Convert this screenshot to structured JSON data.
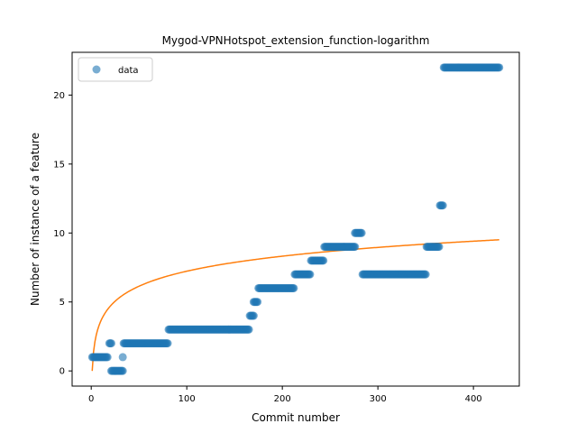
{
  "chart_data": {
    "type": "scatter",
    "title": "Mygod-VPNHotspot_extension_function-logarithm",
    "xlabel": "Commit number",
    "ylabel": "Number of instance of a feature",
    "xlim": [
      -20,
      448
    ],
    "ylim": [
      -1.1,
      23.1
    ],
    "xticks": [
      0,
      100,
      200,
      300,
      400
    ],
    "yticks": [
      0,
      5,
      10,
      15,
      20
    ],
    "grid": false,
    "legend_position": "top-left",
    "series": [
      {
        "name": "data",
        "kind": "scatter",
        "color": "#1f77b4",
        "alpha": 0.6,
        "segments": [
          {
            "x_start": 1,
            "x_end": 17,
            "y": 1
          },
          {
            "x_start": 19,
            "x_end": 21,
            "y": 2
          },
          {
            "x_start": 21,
            "x_end": 33,
            "y": 0
          },
          {
            "x_start": 33,
            "x_end": 33,
            "y": 1
          },
          {
            "x_start": 34,
            "x_end": 80,
            "y": 2
          },
          {
            "x_start": 81,
            "x_end": 165,
            "y": 3
          },
          {
            "x_start": 166,
            "x_end": 170,
            "y": 4
          },
          {
            "x_start": 170,
            "x_end": 174,
            "y": 5
          },
          {
            "x_start": 175,
            "x_end": 212,
            "y": 6
          },
          {
            "x_start": 213,
            "x_end": 229,
            "y": 7
          },
          {
            "x_start": 230,
            "x_end": 243,
            "y": 8
          },
          {
            "x_start": 244,
            "x_end": 276,
            "y": 9
          },
          {
            "x_start": 276,
            "x_end": 283,
            "y": 10
          },
          {
            "x_start": 284,
            "x_end": 350,
            "y": 7
          },
          {
            "x_start": 351,
            "x_end": 364,
            "y": 9
          },
          {
            "x_start": 365,
            "x_end": 368,
            "y": 12
          },
          {
            "x_start": 369,
            "x_end": 427,
            "y": 22
          }
        ]
      },
      {
        "name": "",
        "kind": "line",
        "color": "#ff7f0e",
        "model": "logarithm",
        "coefficients": {
          "a": 1.57,
          "b": 0.0
        },
        "x_range": [
          1,
          427
        ]
      }
    ]
  }
}
